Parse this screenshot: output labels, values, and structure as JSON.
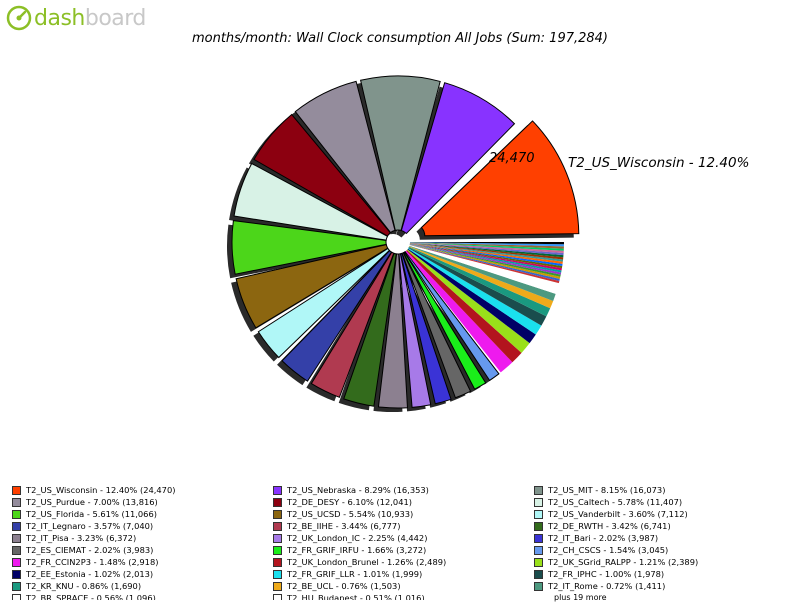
{
  "logo": {
    "text_a": "dash",
    "text_b": "board",
    "text_c": "ard"
  },
  "title": "months/month: Wall Clock consumption All Jobs (Sum: 197,284)",
  "chart_data": {
    "type": "pie",
    "title": "months/month: Wall Clock consumption All Jobs (Sum: 197,284)",
    "total": 197284,
    "highlight": {
      "label": "T2_US_Wisconsin - 12.40%",
      "value_label": "24,470"
    },
    "slices": [
      {
        "name": "T2_US_Wisconsin",
        "pct": 12.4,
        "value": 24470,
        "label": "T2_US_Wisconsin - 12.40% (24,470)",
        "color": "#ff4000"
      },
      {
        "name": "T2_US_Nebraska",
        "pct": 8.29,
        "value": 16353,
        "label": "T2_US_Nebraska - 8.29% (16,353)",
        "color": "#8833ff"
      },
      {
        "name": "T2_US_MIT",
        "pct": 8.15,
        "value": 16073,
        "label": "T2_US_MIT - 8.15% (16,073)",
        "color": "#80948c"
      },
      {
        "name": "T2_US_Purdue",
        "pct": 7.0,
        "value": 13816,
        "label": "T2_US_Purdue - 7.00% (13,816)",
        "color": "#948c9c"
      },
      {
        "name": "T2_DE_DESY",
        "pct": 6.1,
        "value": 12041,
        "label": "T2_DE_DESY - 6.10% (12,041)",
        "color": "#8c0010"
      },
      {
        "name": "T2_US_Caltech",
        "pct": 5.78,
        "value": 11407,
        "label": "T2_US_Caltech - 5.78% (11,407)",
        "color": "#d8f2e6"
      },
      {
        "name": "T2_US_Florida",
        "pct": 5.61,
        "value": 11066,
        "label": "T2_US_Florida - 5.61% (11,066)",
        "color": "#4cd61a"
      },
      {
        "name": "T2_US_UCSD",
        "pct": 5.54,
        "value": 10933,
        "label": "T2_US_UCSD - 5.54% (10,933)",
        "color": "#8c6610"
      },
      {
        "name": "T2_US_Vanderbilt",
        "pct": 3.6,
        "value": 7112,
        "label": "T2_US_Vanderbilt - 3.60% (7,112)",
        "color": "#b0f7f7"
      },
      {
        "name": "T2_IT_Legnaro",
        "pct": 3.57,
        "value": 7040,
        "label": "T2_IT_Legnaro - 3.57% (7,040)",
        "color": "#3440a8"
      },
      {
        "name": "T2_BE_IIHE",
        "pct": 3.44,
        "value": 6777,
        "label": "T2_BE_IIHE - 3.44% (6,777)",
        "color": "#b03a50"
      },
      {
        "name": "T2_DE_RWTH",
        "pct": 3.42,
        "value": 6741,
        "label": "T2_DE_RWTH - 3.42% (6,741)",
        "color": "#336b1c"
      },
      {
        "name": "T2_IT_Pisa",
        "pct": 3.23,
        "value": 6372,
        "label": "T2_IT_Pisa - 3.23% (6,372)",
        "color": "#8c8090"
      },
      {
        "name": "T2_UK_London_IC",
        "pct": 2.25,
        "value": 4442,
        "label": "T2_UK_London_IC - 2.25% (4,442)",
        "color": "#a77ae8"
      },
      {
        "name": "T2_IT_Bari",
        "pct": 2.02,
        "value": 3987,
        "label": "T2_IT_Bari - 2.02% (3,987)",
        "color": "#3a33d6"
      },
      {
        "name": "T2_ES_CIEMAT",
        "pct": 2.02,
        "value": 3983,
        "label": "T2_ES_CIEMAT - 2.02% (3,983)",
        "color": "#666666"
      },
      {
        "name": "T2_FR_GRIF_IRFU",
        "pct": 1.66,
        "value": 3272,
        "label": "T2_FR_GRIF_IRFU - 1.66% (3,272)",
        "color": "#1aee1a"
      },
      {
        "name": "T2_CH_CSCS",
        "pct": 1.54,
        "value": 3045,
        "label": "T2_CH_CSCS - 1.54% (3,045)",
        "color": "#6699ee"
      },
      {
        "name": "T2_FR_CCIN2P3",
        "pct": 1.48,
        "value": 2918,
        "label": "T2_FR_CCIN2P3 - 1.48% (2,918)",
        "color": "#ee1aee"
      },
      {
        "name": "T2_UK_London_Brunel",
        "pct": 1.26,
        "value": 2489,
        "label": "T2_UK_London_Brunel - 1.26% (2,489)",
        "color": "#b3141e"
      },
      {
        "name": "T2_UK_SGrid_RALPP",
        "pct": 1.21,
        "value": 2389,
        "label": "T2_UK_SGrid_RALPP - 1.21% (2,389)",
        "color": "#99e01a"
      },
      {
        "name": "T2_EE_Estonia",
        "pct": 1.02,
        "value": 2013,
        "label": "T2_EE_Estonia - 1.02% (2,013)",
        "color": "#000066"
      },
      {
        "name": "T2_FR_GRIF_LLR",
        "pct": 1.01,
        "value": 1999,
        "label": "T2_FR_GRIF_LLR - 1.01% (1,999)",
        "color": "#1ae0ee"
      },
      {
        "name": "T2_FR_IPHC",
        "pct": 1.0,
        "value": 1978,
        "label": "T2_FR_IPHC - 1.00% (1,978)",
        "color": "#1a4d4d"
      },
      {
        "name": "T2_KR_KNU",
        "pct": 0.86,
        "value": 1690,
        "label": "T2_KR_KNU - 0.86% (1,690)",
        "color": "#1a9980"
      },
      {
        "name": "T2_BE_UCL",
        "pct": 0.76,
        "value": 1503,
        "label": "T2_BE_UCL - 0.76% (1,503)",
        "color": "#eeaa1a"
      },
      {
        "name": "T2_IT_Rome",
        "pct": 0.72,
        "value": 1411,
        "label": "T2_IT_Rome - 0.72% (1,411)",
        "color": "#4d9980"
      },
      {
        "name": "T2_BR_SPRACE",
        "pct": 0.56,
        "value": 1096,
        "label": "T2_BR_SPRACE - 0.56% (1,096)",
        "color": "#ffffff"
      },
      {
        "name": "T2_HU_Budapest",
        "pct": 0.51,
        "value": 1016,
        "label": "T2_HU_Budapest - 0.51% (1,016)",
        "color": "#ffffff"
      }
    ],
    "other_small_colors": [
      "#cc3333",
      "#3366cc",
      "#cc9900",
      "#339933",
      "#9933cc",
      "#00a0a0",
      "#cc0066",
      "#666600",
      "#0066ff",
      "#ff6600",
      "#339999",
      "#993300",
      "#006633",
      "#6666cc",
      "#cc6699",
      "#00cc66",
      "#996633",
      "#3399ff",
      "#000000"
    ],
    "more_label": "plus 19 more"
  }
}
